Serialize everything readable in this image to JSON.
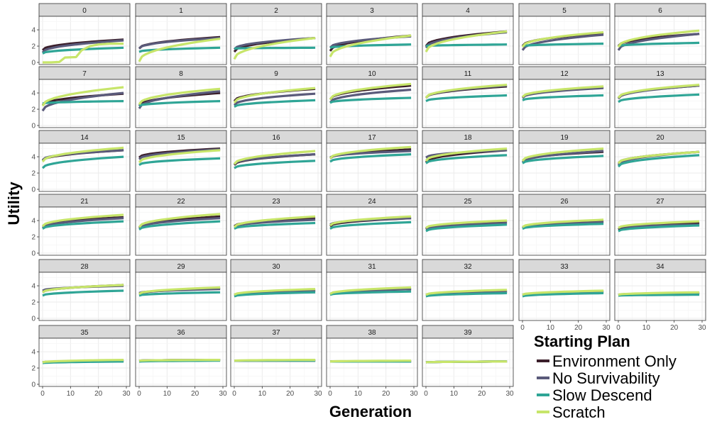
{
  "chart_data": {
    "type": "line",
    "facet_labels": [
      "0",
      "1",
      "2",
      "3",
      "4",
      "5",
      "6",
      "7",
      "8",
      "9",
      "10",
      "11",
      "12",
      "13",
      "14",
      "15",
      "16",
      "17",
      "18",
      "19",
      "20",
      "21",
      "22",
      "23",
      "24",
      "25",
      "26",
      "27",
      "28",
      "29",
      "30",
      "31",
      "32",
      "33",
      "34",
      "35",
      "36",
      "37",
      "38",
      "39"
    ],
    "xlabel": "Generation",
    "ylabel": "Utility",
    "xlim": [
      0,
      30
    ],
    "ylim": [
      0,
      5.4
    ],
    "x_ticks": [
      0,
      10,
      20,
      30
    ],
    "y_ticks": [
      0,
      2,
      4
    ],
    "generations": [
      0,
      1,
      2,
      4,
      6,
      8,
      10,
      12,
      15,
      18,
      21,
      24,
      27,
      29
    ],
    "legend": {
      "title": "Starting Plan",
      "position": "bottom-right",
      "entries": [
        "Environment Only",
        "No Survivability",
        "Slow Descend",
        "Scratch"
      ]
    },
    "colors": {
      "Environment Only": "#3b1f2b",
      "No Survivability": "#5a5a7a",
      "Slow Descend": "#2fa596",
      "Scratch": "#c7e56a"
    },
    "series": [
      {
        "name": "Environment Only",
        "start": [
          1.5,
          1.7,
          1.3,
          1.4,
          2.0,
          2.0,
          2.0,
          2.5,
          2.4,
          3.0,
          3.2,
          3.4,
          3.4,
          3.4,
          3.5,
          3.9,
          3.0,
          3.8,
          3.3,
          3.5,
          3.2,
          3.3,
          3.1,
          3.3,
          3.3,
          3.0,
          3.1,
          2.9,
          3.2,
          3.0,
          2.9,
          3.0,
          2.9,
          2.9,
          2.9,
          2.7,
          2.9,
          2.9,
          2.8,
          2.7
        ],
        "end": [
          2.8,
          3.1,
          3.0,
          3.3,
          3.8,
          3.6,
          3.5,
          3.9,
          4.0,
          4.5,
          4.9,
          4.8,
          4.7,
          4.9,
          4.8,
          5.0,
          4.3,
          4.9,
          4.8,
          4.6,
          4.6,
          4.4,
          4.5,
          4.3,
          4.3,
          3.9,
          3.9,
          3.7,
          4.1,
          3.7,
          3.4,
          3.6,
          3.3,
          3.3,
          3.1,
          2.9,
          3.0,
          2.9,
          2.8,
          2.8
        ]
      },
      {
        "name": "No Survivability",
        "start": [
          1.2,
          1.7,
          1.6,
          1.8,
          1.8,
          1.5,
          1.5,
          1.8,
          2.1,
          2.5,
          2.8,
          3.4,
          3.4,
          3.3,
          3.6,
          3.7,
          3.1,
          3.9,
          3.9,
          3.3,
          3.0,
          3.1,
          3.1,
          3.2,
          3.5,
          2.9,
          3.1,
          3.1,
          3.4,
          3.1,
          2.9,
          3.0,
          2.9,
          2.9,
          2.9,
          2.7,
          2.9,
          2.9,
          2.8,
          2.7
        ],
        "end": [
          2.7,
          3.0,
          3.0,
          3.2,
          3.7,
          3.4,
          3.5,
          4.0,
          4.2,
          3.9,
          4.4,
          4.9,
          4.6,
          4.9,
          4.8,
          4.9,
          4.3,
          4.7,
          4.8,
          4.7,
          4.6,
          4.3,
          4.3,
          4.1,
          4.3,
          3.7,
          3.8,
          3.5,
          4.0,
          3.6,
          3.4,
          3.6,
          3.3,
          3.3,
          3.1,
          2.9,
          3.0,
          2.9,
          2.8,
          2.8
        ]
      },
      {
        "name": "Slow Descend",
        "start": [
          1.1,
          1.3,
          1.7,
          1.8,
          2.0,
          2.0,
          2.0,
          2.7,
          2.4,
          2.3,
          2.8,
          3.0,
          3.1,
          2.9,
          2.6,
          3.0,
          2.6,
          3.4,
          3.2,
          3.2,
          2.8,
          3.0,
          2.9,
          3.0,
          3.0,
          2.7,
          3.0,
          2.7,
          2.8,
          2.8,
          2.7,
          2.9,
          2.7,
          2.7,
          2.8,
          2.6,
          2.8,
          2.9,
          2.8,
          2.7
        ],
        "end": [
          1.8,
          1.8,
          1.8,
          2.2,
          2.2,
          2.3,
          2.4,
          3.0,
          3.0,
          3.1,
          3.4,
          3.7,
          3.7,
          3.8,
          4.0,
          3.8,
          3.5,
          4.3,
          4.2,
          4.1,
          4.2,
          3.9,
          3.9,
          3.7,
          3.8,
          3.5,
          3.6,
          3.4,
          3.4,
          3.2,
          3.2,
          3.3,
          3.1,
          3.1,
          2.9,
          2.8,
          2.9,
          2.9,
          2.8,
          2.8
        ]
      },
      {
        "name": "Scratch",
        "start": [
          0.0,
          0.1,
          0.4,
          0.7,
          1.3,
          1.9,
          1.9,
          2.4,
          2.6,
          2.8,
          3.2,
          3.4,
          3.5,
          3.4,
          3.4,
          3.3,
          3.1,
          3.8,
          3.5,
          3.5,
          3.2,
          3.3,
          3.2,
          3.2,
          3.4,
          3.1,
          3.2,
          3.1,
          3.2,
          3.0,
          2.9,
          3.0,
          2.9,
          2.9,
          2.9,
          2.7,
          2.9,
          2.9,
          2.8,
          2.7
        ],
        "end": [
          2.3,
          2.9,
          3.0,
          3.3,
          3.8,
          3.7,
          3.9,
          4.7,
          4.5,
          4.6,
          5.1,
          5.0,
          4.8,
          5.0,
          5.1,
          4.8,
          4.7,
          5.2,
          5.0,
          5.0,
          4.6,
          4.7,
          4.8,
          4.5,
          4.5,
          4.0,
          4.1,
          3.9,
          4.1,
          3.8,
          3.6,
          3.8,
          3.5,
          3.4,
          3.2,
          3.0,
          3.0,
          3.0,
          2.9,
          2.8
        ]
      }
    ]
  }
}
